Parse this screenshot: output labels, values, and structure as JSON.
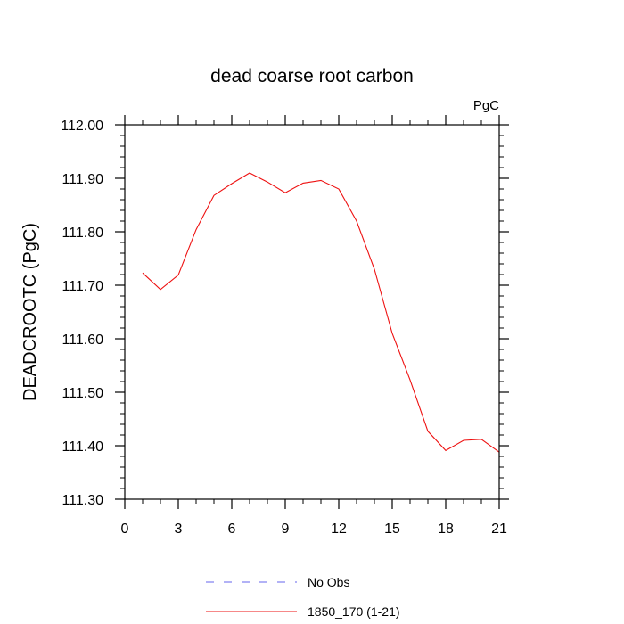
{
  "chart_data": {
    "type": "line",
    "title": "dead coarse root carbon",
    "units_label": "PgC",
    "ylabel": "DEADCROOTC  (PgC)",
    "xlabel": "",
    "xlim": [
      0,
      21
    ],
    "ylim": [
      111.3,
      112.0
    ],
    "x_ticks": [
      0,
      3,
      6,
      9,
      12,
      15,
      18,
      21
    ],
    "x_tick_labels": [
      "0",
      "3",
      "6",
      "9",
      "12",
      "15",
      "18",
      "21"
    ],
    "y_ticks": [
      111.3,
      111.4,
      111.5,
      111.6,
      111.7,
      111.8,
      111.9,
      112.0
    ],
    "y_tick_labels": [
      "111.30",
      "111.40",
      "111.50",
      "111.60",
      "111.70",
      "111.80",
      "111.90",
      "112.00"
    ],
    "grid": false,
    "legend_position": "bottom",
    "series": [
      {
        "name": "No Obs",
        "color": "#6666ee",
        "dash": "dashed",
        "x": [],
        "y": []
      },
      {
        "name": "1850_170 (1-21)",
        "color": "#ee1111",
        "dash": "solid",
        "x": [
          1,
          2,
          3,
          4,
          5,
          6,
          7,
          8,
          9,
          10,
          11,
          12,
          13,
          14,
          15,
          16,
          17,
          18,
          19,
          20,
          21
        ],
        "y": [
          111.723,
          111.692,
          111.719,
          111.804,
          111.868,
          111.89,
          111.91,
          111.893,
          111.873,
          111.891,
          111.896,
          111.88,
          111.82,
          111.73,
          111.61,
          111.523,
          111.427,
          111.391,
          111.41,
          111.412,
          111.388
        ]
      }
    ]
  }
}
